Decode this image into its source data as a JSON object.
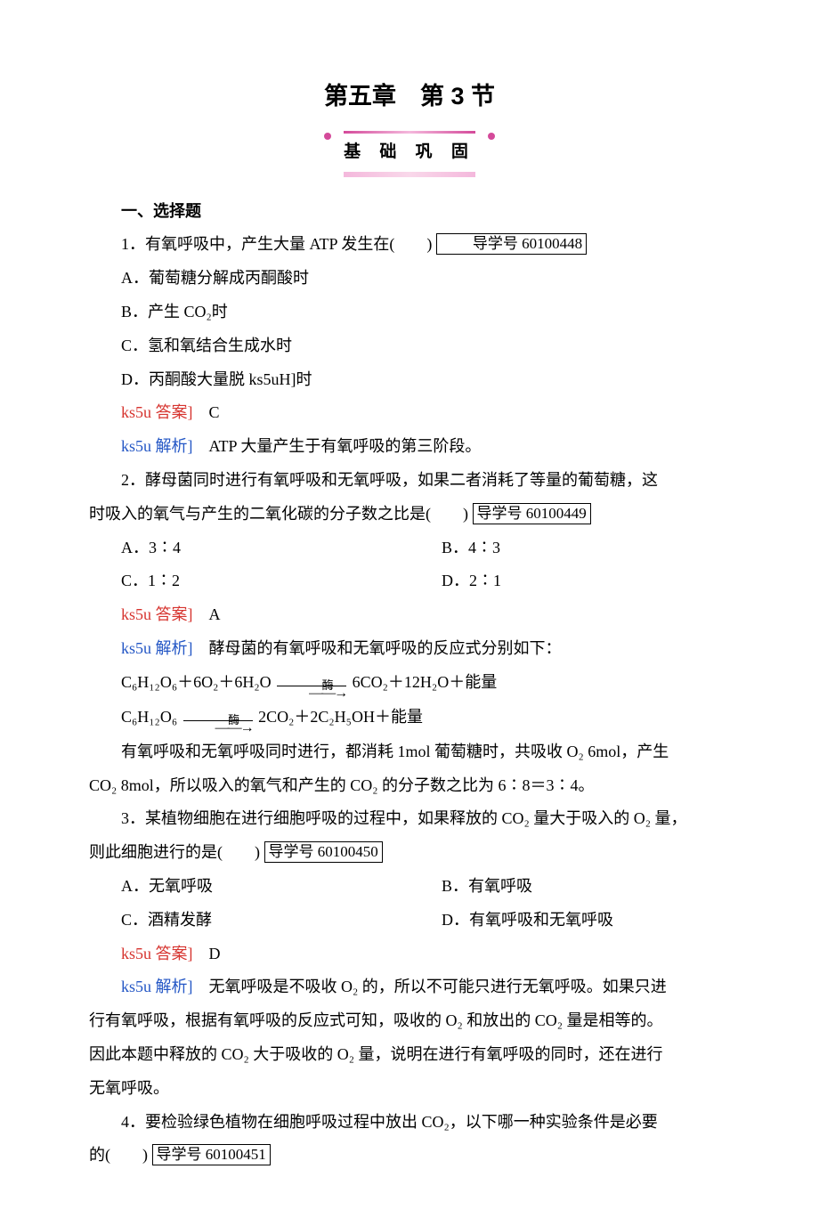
{
  "title": "第五章　第 3 节",
  "subtitle": "基 础 巩 固",
  "section_heading": "一、选择题",
  "answer_label": "ks5u 答案]",
  "analysis_label": "ks5u 解析]",
  "tag_prefix": "导学号 ",
  "blank": "(　　)",
  "arrow_top": "酶",
  "arrow_bot": "——→",
  "questions": [
    {
      "num": "1．",
      "stem": "有氧呼吸中，产生大量 ATP 发生在",
      "tag": "60100448",
      "options": [
        "A．葡萄糖分解成丙酮酸时",
        "B．产生 CO₂时",
        "C．氢和氧结合生成水时",
        "D．丙酮酸大量脱 ks5uH]时"
      ],
      "two_col": false,
      "answer": "　C",
      "analysis": "　ATP 大量产生于有氧呼吸的第三阶段。"
    },
    {
      "num": "2．",
      "stem_a": "酵母菌同时进行有氧呼吸和无氧呼吸，如果二者消耗了等量的葡萄糖，这",
      "stem_b": "时吸入的氧气与产生的二氧化碳的分子数之比是",
      "tag": "60100449",
      "options": [
        "A．3∶4",
        "B．4∶3",
        "C．1∶2",
        "D．2∶1"
      ],
      "two_col": true,
      "answer": "　A",
      "analysis": "　酵母菌的有氧呼吸和无氧呼吸的反应式分别如下：",
      "eq1_a": "C₆H₁₂O₆＋6O₂＋6H₂O",
      "eq1_b": "6CO₂＋12H₂O＋能量",
      "eq2_a": "C₆H₁₂O₆",
      "eq2_b": "2CO₂＋2C₂H₅OH＋能量",
      "tail_a": "有氧呼吸和无氧呼吸同时进行，都消耗 1mol 葡萄糖时，共吸收 O₂ 6mol，产生",
      "tail_b": "CO₂ 8mol，所以吸入的氧气和产生的 CO₂ 的分子数之比为 6∶8＝3∶4。"
    },
    {
      "num": "3．",
      "stem_a": "某植物细胞在进行细胞呼吸的过程中，如果释放的 CO₂ 量大于吸入的 O₂ 量，",
      "stem_b": "则此细胞进行的是",
      "tag": "60100450",
      "options": [
        "A．无氧呼吸",
        "B．有氧呼吸",
        "C．酒精发酵",
        "D．有氧呼吸和无氧呼吸"
      ],
      "two_col": true,
      "answer": "　D",
      "analysis_a": "　无氧呼吸是不吸收 O₂ 的，所以不可能只进行无氧呼吸。如果只进",
      "analysis_b": "行有氧呼吸，根据有氧呼吸的反应式可知，吸收的 O₂ 和放出的 CO₂ 量是相等的。",
      "analysis_c": "因此本题中释放的 CO₂ 大于吸收的 O₂ 量，说明在进行有氧呼吸的同时，还在进行",
      "analysis_d": "无氧呼吸。"
    },
    {
      "num": "4．",
      "stem_a": "要检验绿色植物在细胞呼吸过程中放出 CO₂，以下哪一种实验条件是必要",
      "stem_b": "的",
      "tag": "60100451"
    }
  ]
}
